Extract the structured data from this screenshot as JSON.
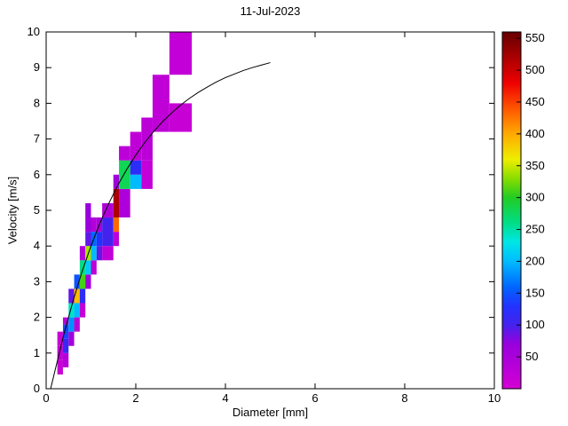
{
  "figure": {
    "title": "11-Jul-2023",
    "xlabel": "Diameter [mm]",
    "ylabel": "Velocity [m/s]"
  },
  "chart_data": {
    "type": "heatmap",
    "title": "11-Jul-2023",
    "xlabel": "Diameter [mm]",
    "ylabel": "Velocity [m/s]",
    "xlim": [
      0,
      10
    ],
    "ylim": [
      0,
      10
    ],
    "x_ticks": [
      0,
      2,
      4,
      6,
      8,
      10
    ],
    "y_ticks": [
      0,
      1,
      2,
      3,
      4,
      5,
      6,
      7,
      8,
      9,
      10
    ],
    "grid": false,
    "legend_position": "none",
    "cells_format": "[diameter_min_mm, diameter_max_mm, velocity_min_ms, velocity_max_ms, count]",
    "cells": [
      [
        0.25,
        0.375,
        0.4,
        0.8,
        15
      ],
      [
        0.25,
        0.375,
        0.8,
        1.2,
        25
      ],
      [
        0.25,
        0.375,
        1.2,
        1.6,
        15
      ],
      [
        0.375,
        0.5,
        0.6,
        1.0,
        35
      ],
      [
        0.375,
        0.5,
        1.0,
        1.4,
        110
      ],
      [
        0.375,
        0.5,
        1.4,
        1.8,
        140
      ],
      [
        0.375,
        0.5,
        1.8,
        2.0,
        30
      ],
      [
        0.5,
        0.625,
        1.2,
        1.6,
        60
      ],
      [
        0.5,
        0.625,
        1.6,
        2.0,
        180
      ],
      [
        0.5,
        0.625,
        2.0,
        2.4,
        240
      ],
      [
        0.5,
        0.625,
        2.4,
        2.8,
        90
      ],
      [
        0.625,
        0.75,
        1.6,
        2.0,
        30
      ],
      [
        0.625,
        0.75,
        2.0,
        2.4,
        200
      ],
      [
        0.625,
        0.75,
        2.4,
        2.8,
        390
      ],
      [
        0.625,
        0.75,
        2.8,
        3.2,
        150
      ],
      [
        0.75,
        0.875,
        2.0,
        2.4,
        20
      ],
      [
        0.75,
        0.875,
        2.4,
        2.8,
        120
      ],
      [
        0.75,
        0.875,
        2.8,
        3.2,
        310
      ],
      [
        0.75,
        0.875,
        3.2,
        3.6,
        260
      ],
      [
        0.75,
        0.875,
        3.6,
        4.0,
        40
      ],
      [
        0.875,
        1.0,
        2.8,
        3.2,
        60
      ],
      [
        0.875,
        1.0,
        3.2,
        3.6,
        210
      ],
      [
        0.875,
        1.0,
        3.6,
        4.0,
        340
      ],
      [
        0.875,
        1.0,
        4.0,
        4.4,
        90
      ],
      [
        0.875,
        1.0,
        4.4,
        5.2,
        70
      ],
      [
        1.0,
        1.125,
        3.2,
        3.6,
        30
      ],
      [
        1.0,
        1.125,
        3.6,
        4.0,
        200
      ],
      [
        1.0,
        1.125,
        4.0,
        4.4,
        160
      ],
      [
        1.0,
        1.125,
        4.4,
        4.8,
        40
      ],
      [
        1.125,
        1.25,
        3.6,
        4.0,
        90
      ],
      [
        1.125,
        1.25,
        4.0,
        4.4,
        130
      ],
      [
        1.125,
        1.25,
        4.4,
        4.8,
        50
      ],
      [
        1.25,
        1.5,
        3.6,
        4.0,
        25
      ],
      [
        1.25,
        1.5,
        4.0,
        4.8,
        100
      ],
      [
        1.25,
        1.5,
        4.8,
        5.2,
        40
      ],
      [
        1.5,
        1.625,
        4.0,
        4.4,
        30
      ],
      [
        1.5,
        1.625,
        4.4,
        4.8,
        430
      ],
      [
        1.5,
        1.625,
        4.8,
        5.6,
        520
      ],
      [
        1.5,
        1.625,
        5.6,
        6.0,
        60
      ],
      [
        1.625,
        1.875,
        4.8,
        5.6,
        45
      ],
      [
        1.625,
        1.875,
        5.6,
        6.4,
        280
      ],
      [
        1.625,
        1.875,
        6.4,
        6.8,
        30
      ],
      [
        1.875,
        2.125,
        5.6,
        6.0,
        200
      ],
      [
        1.875,
        2.125,
        6.0,
        6.4,
        120
      ],
      [
        1.875,
        2.125,
        6.4,
        7.2,
        25
      ],
      [
        2.125,
        2.375,
        5.6,
        6.4,
        20
      ],
      [
        2.125,
        2.375,
        6.4,
        7.6,
        30
      ],
      [
        2.375,
        2.75,
        7.2,
        8.8,
        25
      ],
      [
        2.75,
        3.25,
        7.2,
        8.0,
        15
      ],
      [
        2.75,
        3.25,
        8.8,
        10.4,
        20
      ]
    ],
    "curve": {
      "label": "terminal-velocity-curve",
      "color": "#000000",
      "points": [
        [
          0.1,
          0.0
        ],
        [
          0.2,
          0.52
        ],
        [
          0.4,
          1.55
        ],
        [
          0.6,
          2.46
        ],
        [
          0.8,
          3.28
        ],
        [
          1.0,
          4.0
        ],
        [
          1.2,
          4.64
        ],
        [
          1.4,
          5.2
        ],
        [
          1.6,
          5.71
        ],
        [
          1.8,
          6.15
        ],
        [
          2.0,
          6.55
        ],
        [
          2.2,
          6.9
        ],
        [
          2.4,
          7.21
        ],
        [
          2.6,
          7.49
        ],
        [
          2.8,
          7.73
        ],
        [
          3.0,
          7.95
        ],
        [
          3.2,
          8.14
        ],
        [
          3.4,
          8.31
        ],
        [
          3.6,
          8.46
        ],
        [
          3.8,
          8.6
        ],
        [
          4.0,
          8.72
        ],
        [
          4.2,
          8.82
        ],
        [
          4.4,
          8.92
        ],
        [
          4.6,
          9.0
        ],
        [
          4.8,
          9.07
        ],
        [
          5.0,
          9.14
        ]
      ]
    },
    "colorbar": {
      "min": 0,
      "max": 560,
      "ticks": [
        50,
        100,
        150,
        200,
        250,
        300,
        350,
        400,
        450,
        500,
        550
      ],
      "stops": [
        [
          0,
          "#d400d4"
        ],
        [
          70,
          "#9900dd"
        ],
        [
          100,
          "#4422ee"
        ],
        [
          130,
          "#2233ff"
        ],
        [
          160,
          "#0066ff"
        ],
        [
          200,
          "#00bbff"
        ],
        [
          230,
          "#00e6e6"
        ],
        [
          260,
          "#00dd88"
        ],
        [
          300,
          "#22cc22"
        ],
        [
          330,
          "#88dd00"
        ],
        [
          360,
          "#eeee00"
        ],
        [
          400,
          "#ffaa00"
        ],
        [
          440,
          "#ff5500"
        ],
        [
          480,
          "#ee0000"
        ],
        [
          520,
          "#aa0000"
        ],
        [
          560,
          "#660000"
        ]
      ]
    },
    "colors": {
      "background": "#ffffff",
      "axis": "#000000",
      "curve": "#000000"
    }
  }
}
